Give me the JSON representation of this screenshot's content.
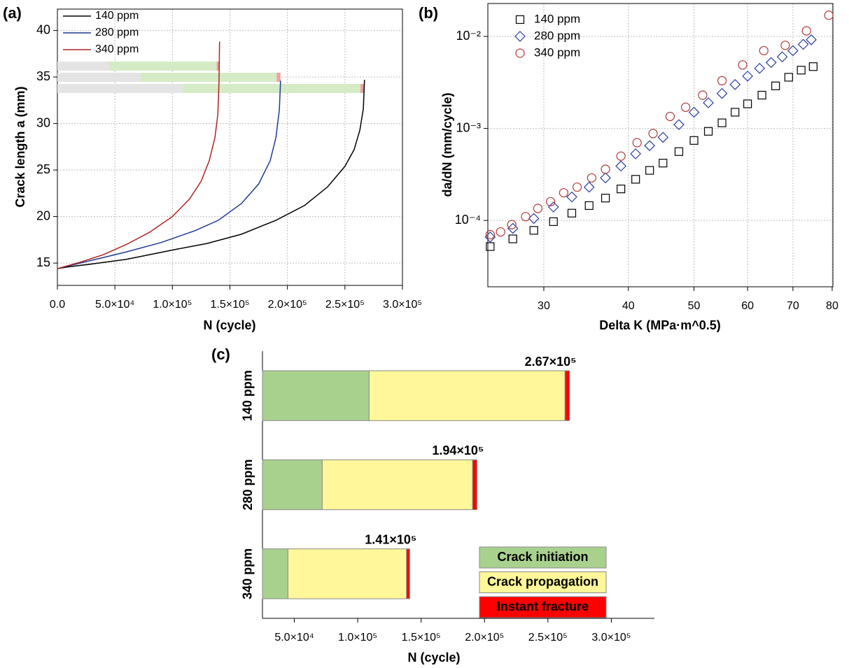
{
  "chart_data": [
    {
      "type": "line",
      "panel_label": "(a)",
      "x_label": "N (cycle)",
      "y_label": "Crack length a (mm)",
      "xlim": [
        0,
        300000
      ],
      "ylim": [
        12.6,
        42.3
      ],
      "xticks": [
        {
          "value": 0,
          "label": "0.0"
        },
        {
          "value": 50000,
          "label": "5.0×10⁴"
        },
        {
          "value": 100000,
          "label": "1.0×10⁵"
        },
        {
          "value": 150000,
          "label": "1.5×10⁵"
        },
        {
          "value": 200000,
          "label": "2.0×10⁵"
        },
        {
          "value": 250000,
          "label": "2.5×10⁵"
        },
        {
          "value": 300000,
          "label": "3.0×10⁵"
        }
      ],
      "yticks": [
        15,
        20,
        25,
        30,
        35,
        40
      ],
      "grid": true,
      "legend": "upper left",
      "phase_colors": [
        "#e4e4e4",
        "#d5ebc6",
        "#f2a0a0"
      ],
      "series": [
        {
          "name": "140 ppm",
          "color": "#000000",
          "x": [
            0,
            10000,
            30000,
            60000,
            100000,
            130000,
            160000,
            190000,
            215000,
            235000,
            250000,
            258000,
            263000,
            266000,
            267000
          ],
          "values": [
            14.4,
            14.6,
            14.9,
            15.4,
            16.4,
            17.1,
            18.1,
            19.6,
            21.2,
            23.2,
            25.4,
            27.2,
            29.3,
            31.6,
            34.7
          ]
        },
        {
          "name": "280 ppm",
          "color": "#1f3a93",
          "x": [
            0,
            30000,
            60000,
            90000,
            120000,
            140000,
            160000,
            175000,
            185000,
            190000,
            193000,
            194000
          ],
          "values": [
            14.4,
            15.3,
            16.2,
            17.2,
            18.5,
            19.6,
            21.4,
            23.5,
            26.0,
            28.5,
            31.5,
            34.6
          ]
        },
        {
          "name": "340 ppm",
          "color": "#b22222",
          "x": [
            0,
            20000,
            40000,
            60000,
            80000,
            100000,
            115000,
            125000,
            132000,
            137000,
            139500,
            140500,
            141000
          ],
          "values": [
            14.4,
            15.1,
            15.9,
            17.0,
            18.3,
            20.0,
            21.9,
            23.8,
            26.0,
            28.5,
            31.0,
            34.5,
            38.8
          ]
        }
      ]
    },
    {
      "type": "scatter",
      "panel_label": "(b)",
      "x_label": "Delta K (MPa·m^0.5)",
      "y_label": "da/dN  (mm/cycle)",
      "xscale": "log",
      "yscale": "log",
      "xlim": [
        24.8,
        80.2
      ],
      "ylim": [
        1.9e-05,
        0.0228
      ],
      "xticks": [
        30,
        40,
        50,
        60,
        70,
        80
      ],
      "yticks": [
        {
          "value": 0.0001,
          "label": "10⁻⁴"
        },
        {
          "value": 0.001,
          "label": "10⁻³"
        },
        {
          "value": 0.01,
          "label": "10⁻²"
        }
      ],
      "grid": true,
      "legend": "upper left",
      "series": [
        {
          "name": "140 ppm",
          "color": "#000000",
          "marker": "square",
          "x": [
            25,
            27,
            29,
            31,
            33,
            35,
            37,
            39,
            41,
            43,
            45,
            47.5,
            50,
            52.5,
            55,
            57.5,
            60,
            63,
            66,
            69,
            72,
            75
          ],
          "values": [
            5.2e-05,
            6.3e-05,
            7.8e-05,
            9.7e-05,
            0.00012,
            0.000145,
            0.000175,
            0.00022,
            0.00028,
            0.00035,
            0.00042,
            0.00056,
            0.00074,
            0.00093,
            0.00115,
            0.0015,
            0.00185,
            0.0023,
            0.0029,
            0.0036,
            0.0043,
            0.0047
          ]
        },
        {
          "name": "280 ppm",
          "color": "#2a3f9e",
          "marker": "diamond",
          "x": [
            25,
            27,
            29,
            31,
            33,
            35,
            37,
            39,
            41,
            43,
            45,
            47.5,
            50,
            52.5,
            55,
            57.5,
            60,
            62.5,
            65,
            67.5,
            70,
            72.5,
            74.5
          ],
          "values": [
            6.6e-05,
            8.2e-05,
            0.000105,
            0.00014,
            0.00018,
            0.00023,
            0.00029,
            0.00039,
            0.00053,
            0.00065,
            0.0008,
            0.0011,
            0.0015,
            0.0019,
            0.0024,
            0.003,
            0.0037,
            0.0045,
            0.0052,
            0.006,
            0.007,
            0.0082,
            0.0092
          ]
        },
        {
          "name": "340 ppm",
          "color": "#b03a3a",
          "marker": "circle",
          "x": [
            25,
            25.9,
            26.9,
            28.2,
            29.4,
            30.7,
            32.1,
            33.6,
            35.3,
            37,
            39,
            41.2,
            43.5,
            46.1,
            48.6,
            51.5,
            55,
            59,
            63.4,
            68.2,
            73.3,
            79.1
          ],
          "values": [
            7e-05,
            7.5e-05,
            9e-05,
            0.00011,
            0.000135,
            0.00016,
            0.0002,
            0.00023,
            0.00029,
            0.00036,
            0.0005,
            0.0007,
            0.00088,
            0.00135,
            0.0017,
            0.0023,
            0.0033,
            0.0049,
            0.007,
            0.008,
            0.0115,
            0.017
          ]
        }
      ]
    },
    {
      "type": "hbar",
      "panel_label": "(c)",
      "x_label": "N (cycle)",
      "stacked": true,
      "categories": [
        "140 ppm",
        "280 ppm",
        "340 ppm"
      ],
      "xlim": [
        24900,
        334000
      ],
      "xticks": [
        {
          "value": 50000,
          "label": "5.0×10⁴"
        },
        {
          "value": 100000,
          "label": "1.0×10⁵"
        },
        {
          "value": 150000,
          "label": "1.5×10⁵"
        },
        {
          "value": 200000,
          "label": "2.0×10⁵"
        },
        {
          "value": 250000,
          "label": "2.5×10⁵"
        },
        {
          "value": 300000,
          "label": "3.0×10⁵"
        }
      ],
      "legend": "lower right",
      "series": [
        {
          "name": "Crack initiation",
          "color": "#a9d18e",
          "values": [
            109000,
            72000,
            45000
          ]
        },
        {
          "name": "Crack propagation",
          "color": "#fff799",
          "values": [
            154500,
            118600,
            93500
          ]
        },
        {
          "name": "Instant fracture",
          "color": "#ff0000",
          "values": [
            3500,
            3400,
            2500
          ]
        }
      ],
      "totals": [
        267000,
        194000,
        141000
      ],
      "total_labels": [
        "2.67×10⁵",
        "1.94×10⁵",
        "1.41×10⁵"
      ]
    }
  ]
}
